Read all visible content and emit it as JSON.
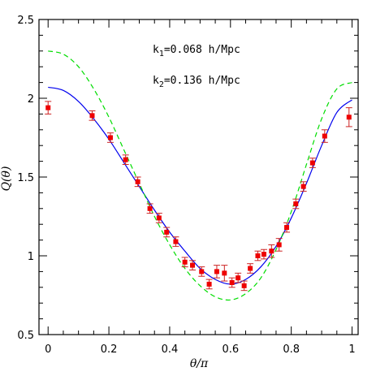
{
  "chart_data": {
    "type": "scatter",
    "xlabel": "θ/π",
    "ylabel": "Q(θ)",
    "xlim": [
      -0.03,
      1.02
    ],
    "ylim": [
      0.5,
      2.5
    ],
    "xticks": [
      0,
      0.2,
      0.4,
      0.6,
      0.8,
      1
    ],
    "yticks": [
      0.5,
      1,
      1.5,
      2,
      2.5
    ],
    "xtick_labels": [
      "0",
      "0.2",
      "0.4",
      "0.6",
      "0.8",
      "1"
    ],
    "ytick_labels": [
      "0.5",
      "1",
      "1.5",
      "2",
      "2.5"
    ],
    "grid": false,
    "annotations": [
      {
        "prefix": "k",
        "sub": "1",
        "suffix": "=0.068 h/Mpc"
      },
      {
        "prefix": "k",
        "sub": "2",
        "suffix": "=0.136 h/Mpc"
      }
    ],
    "colors": {
      "points": "#ee0000",
      "errorbars": "#cc2222",
      "solid": "#0000ee",
      "dashed": "#00dd00"
    },
    "points": [
      {
        "x": 0.0,
        "y": 1.94,
        "err": 0.04
      },
      {
        "x": 0.145,
        "y": 1.89,
        "err": 0.03
      },
      {
        "x": 0.205,
        "y": 1.75,
        "err": 0.03
      },
      {
        "x": 0.255,
        "y": 1.61,
        "err": 0.03
      },
      {
        "x": 0.295,
        "y": 1.47,
        "err": 0.03
      },
      {
        "x": 0.335,
        "y": 1.3,
        "err": 0.03
      },
      {
        "x": 0.365,
        "y": 1.24,
        "err": 0.03
      },
      {
        "x": 0.39,
        "y": 1.15,
        "err": 0.03
      },
      {
        "x": 0.42,
        "y": 1.09,
        "err": 0.03
      },
      {
        "x": 0.45,
        "y": 0.96,
        "err": 0.03
      },
      {
        "x": 0.475,
        "y": 0.94,
        "err": 0.03
      },
      {
        "x": 0.505,
        "y": 0.9,
        "err": 0.03
      },
      {
        "x": 0.53,
        "y": 0.82,
        "err": 0.03
      },
      {
        "x": 0.555,
        "y": 0.9,
        "err": 0.04
      },
      {
        "x": 0.58,
        "y": 0.89,
        "err": 0.05
      },
      {
        "x": 0.605,
        "y": 0.83,
        "err": 0.03
      },
      {
        "x": 0.625,
        "y": 0.86,
        "err": 0.03
      },
      {
        "x": 0.645,
        "y": 0.81,
        "err": 0.03
      },
      {
        "x": 0.665,
        "y": 0.92,
        "err": 0.03
      },
      {
        "x": 0.69,
        "y": 1.0,
        "err": 0.03
      },
      {
        "x": 0.71,
        "y": 1.01,
        "err": 0.03
      },
      {
        "x": 0.735,
        "y": 1.03,
        "err": 0.04
      },
      {
        "x": 0.76,
        "y": 1.07,
        "err": 0.04
      },
      {
        "x": 0.785,
        "y": 1.18,
        "err": 0.03
      },
      {
        "x": 0.815,
        "y": 1.33,
        "err": 0.03
      },
      {
        "x": 0.84,
        "y": 1.44,
        "err": 0.03
      },
      {
        "x": 0.87,
        "y": 1.59,
        "err": 0.03
      },
      {
        "x": 0.91,
        "y": 1.76,
        "err": 0.04
      },
      {
        "x": 0.99,
        "y": 1.88,
        "err": 0.06
      }
    ],
    "curves": [
      {
        "style": "solid",
        "x": [
          0,
          0.05,
          0.1,
          0.15,
          0.2,
          0.25,
          0.3,
          0.35,
          0.4,
          0.45,
          0.5,
          0.55,
          0.6,
          0.65,
          0.7,
          0.75,
          0.8,
          0.85,
          0.9,
          0.95,
          1.0
        ],
        "y": [
          2.07,
          2.05,
          1.98,
          1.87,
          1.74,
          1.59,
          1.44,
          1.29,
          1.15,
          1.03,
          0.92,
          0.85,
          0.82,
          0.85,
          0.93,
          1.06,
          1.24,
          1.46,
          1.7,
          1.91,
          1.99
        ]
      },
      {
        "style": "dashed",
        "x": [
          0,
          0.05,
          0.1,
          0.15,
          0.2,
          0.25,
          0.3,
          0.35,
          0.4,
          0.45,
          0.5,
          0.55,
          0.6,
          0.65,
          0.7,
          0.75,
          0.8,
          0.85,
          0.9,
          0.95,
          1.0
        ],
        "y": [
          2.3,
          2.28,
          2.2,
          2.06,
          1.88,
          1.67,
          1.46,
          1.25,
          1.07,
          0.92,
          0.81,
          0.74,
          0.72,
          0.76,
          0.86,
          1.04,
          1.28,
          1.58,
          1.87,
          2.06,
          2.1
        ]
      }
    ]
  }
}
